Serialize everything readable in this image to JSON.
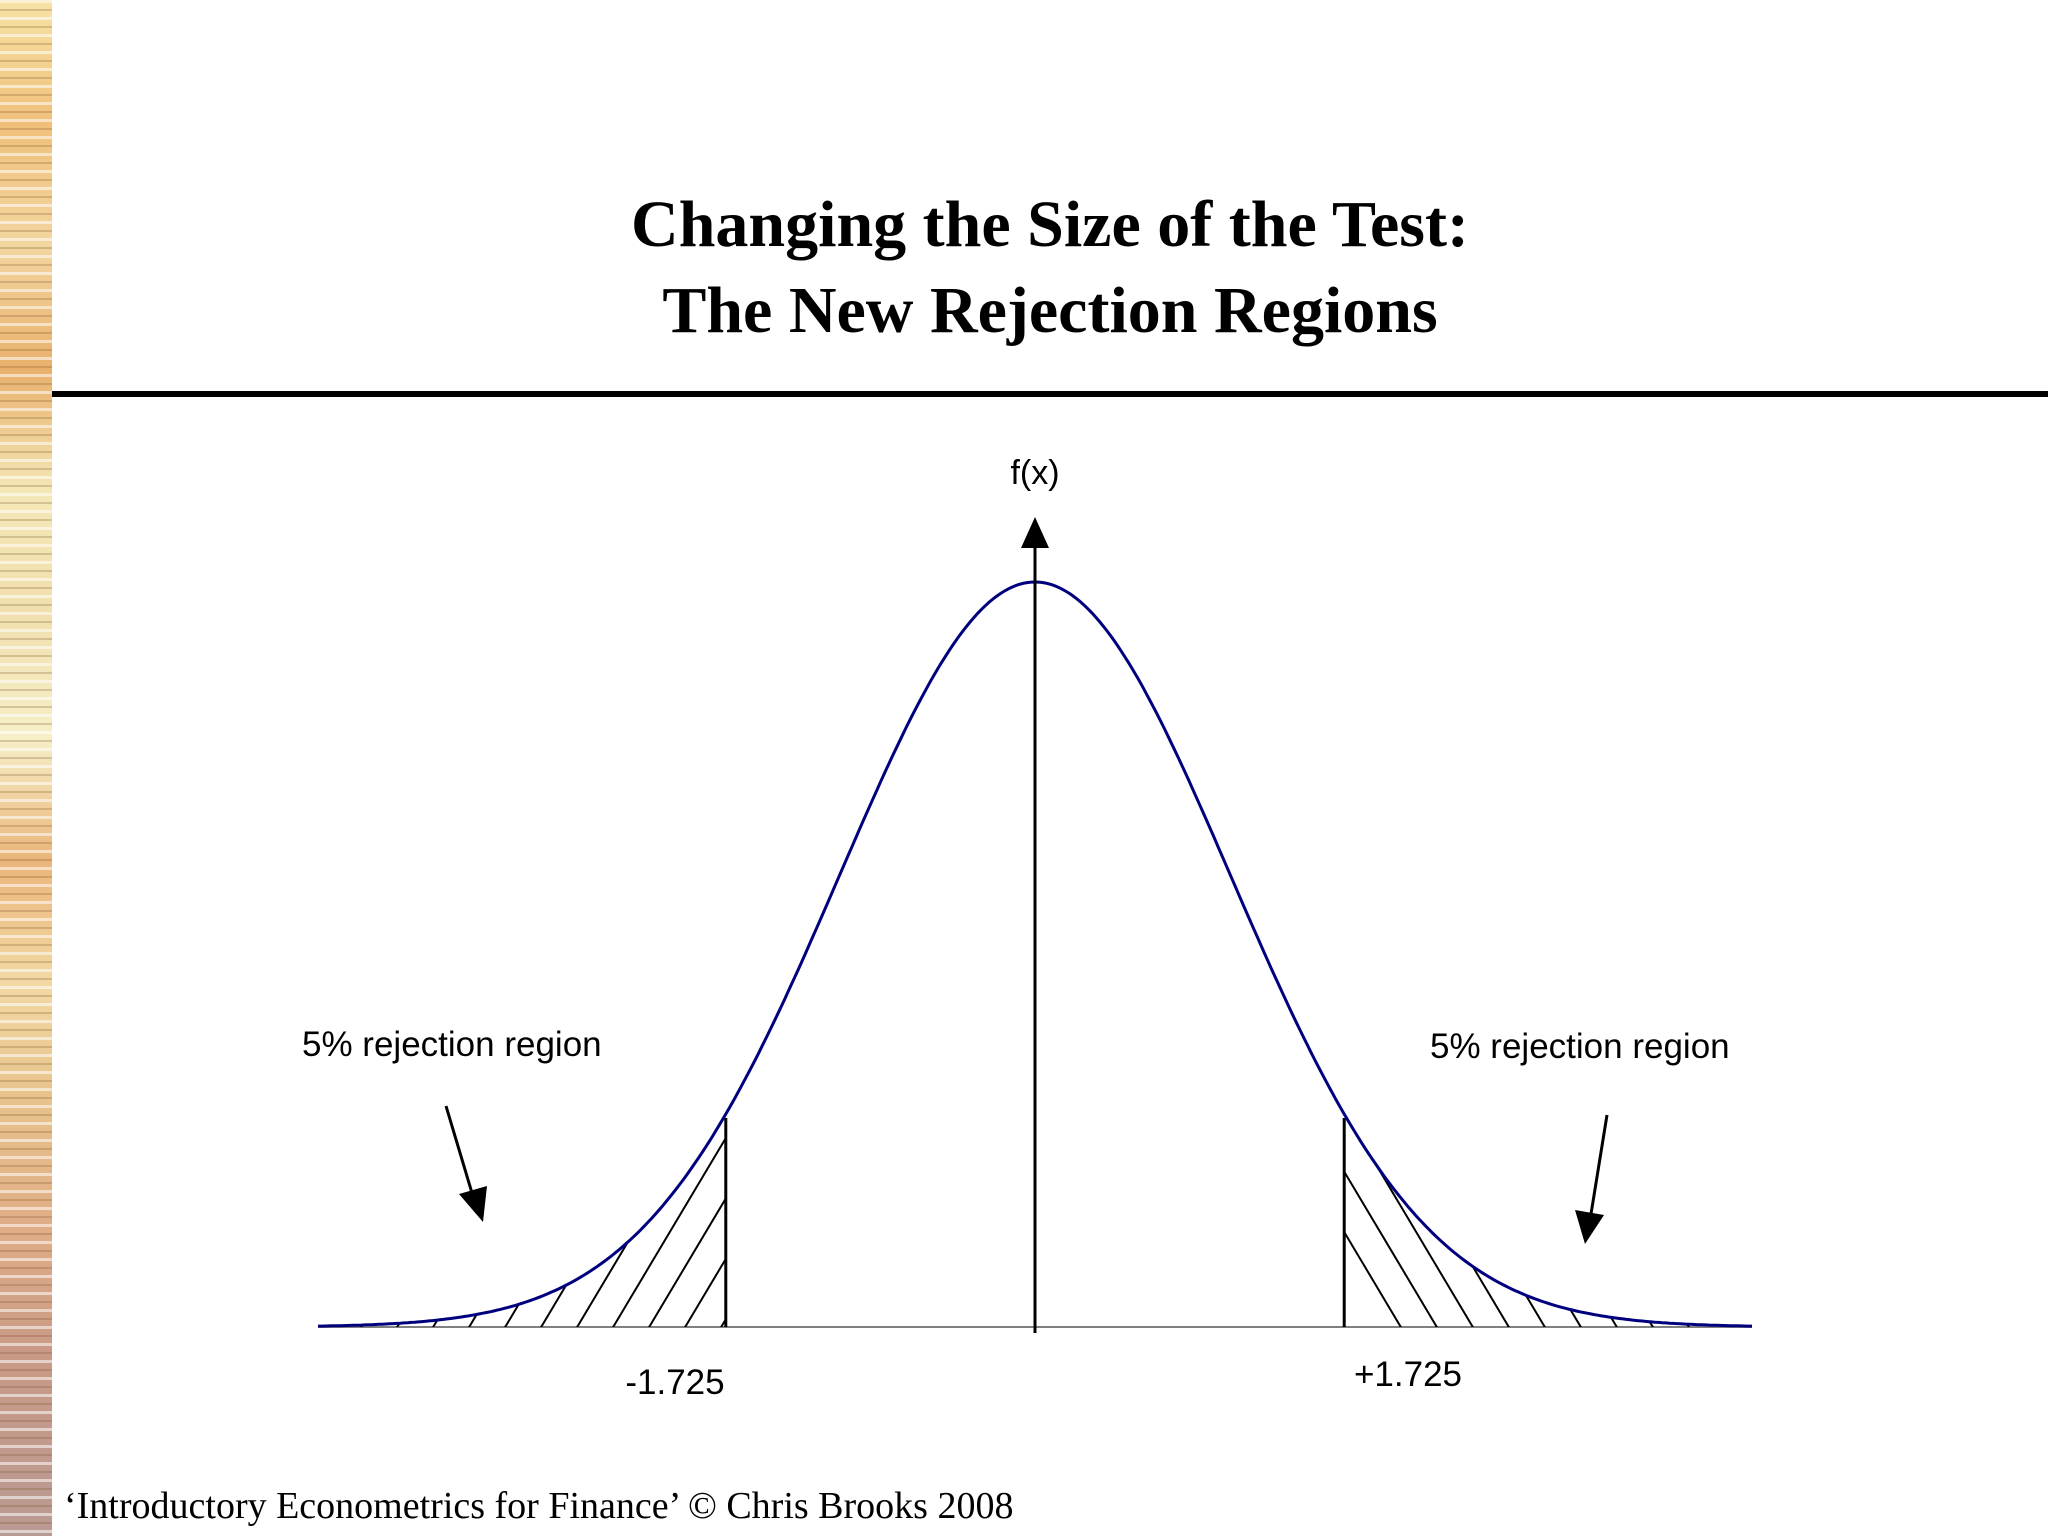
{
  "slide": {
    "title_line_1": "Changing the Size of the Test:",
    "title_line_2": "The New Rejection Regions",
    "footer": "‘Introductory Econometrics for Finance’ © Chris Brooks 2008"
  },
  "diagram": {
    "y_axis_label": "f(x)",
    "left_region_label": "5% rejection region",
    "right_region_label": "5% rejection region",
    "left_critical_label": "-1.725",
    "right_critical_label": "+1.725",
    "curve_color": "#00007f",
    "critical_values": [
      -1.725,
      1.725
    ],
    "x_range": [
      -4,
      4
    ]
  }
}
